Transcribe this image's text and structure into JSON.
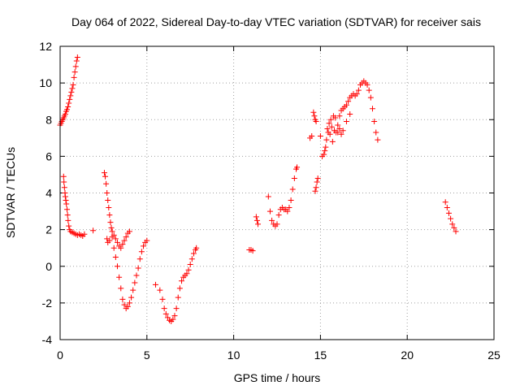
{
  "chart_data": {
    "type": "scatter",
    "title": "Day 064 of 2022, Sidereal Day-to-day VTEC variation (SDTVAR) for receiver sais",
    "xlabel": "GPS time / hours",
    "ylabel": "SDTVAR / TECUs",
    "xlim": [
      0,
      25
    ],
    "ylim": [
      -4,
      12
    ],
    "xticks": [
      0,
      5,
      10,
      15,
      20,
      25
    ],
    "yticks": [
      -4,
      -2,
      0,
      2,
      4,
      6,
      8,
      10,
      12
    ],
    "xtick_labels": [
      "0",
      "5",
      "10",
      "15",
      "20",
      "25"
    ],
    "ytick_labels": [
      "-4",
      "-2",
      "0",
      "2",
      "4",
      "6",
      "8",
      "10",
      "12"
    ],
    "grid": true,
    "marker": "plus",
    "color": "#ff0000",
    "series": [
      {
        "values": [
          [
            0.0,
            7.7
          ],
          [
            0.05,
            7.8
          ],
          [
            0.1,
            7.9
          ],
          [
            0.15,
            8.0
          ],
          [
            0.2,
            8.1
          ],
          [
            0.25,
            8.2
          ],
          [
            0.3,
            8.3
          ],
          [
            0.35,
            8.45
          ],
          [
            0.4,
            8.55
          ],
          [
            0.45,
            8.7
          ],
          [
            0.5,
            8.9
          ],
          [
            0.55,
            9.1
          ],
          [
            0.6,
            9.3
          ],
          [
            0.65,
            9.5
          ],
          [
            0.7,
            9.7
          ],
          [
            0.75,
            9.9
          ],
          [
            0.8,
            10.3
          ],
          [
            0.85,
            10.6
          ],
          [
            0.9,
            10.9
          ],
          [
            0.95,
            11.2
          ],
          [
            1.0,
            11.4
          ],
          [
            0.2,
            4.9
          ],
          [
            0.22,
            4.6
          ],
          [
            0.25,
            4.3
          ],
          [
            0.28,
            4.0
          ],
          [
            0.3,
            3.8
          ],
          [
            0.33,
            3.6
          ],
          [
            0.36,
            3.4
          ],
          [
            0.4,
            3.1
          ],
          [
            0.43,
            2.8
          ],
          [
            0.46,
            2.5
          ],
          [
            0.5,
            2.2
          ],
          [
            0.55,
            2.0
          ],
          [
            0.6,
            1.9
          ],
          [
            0.7,
            1.85
          ],
          [
            0.8,
            1.8
          ],
          [
            0.9,
            1.75
          ],
          [
            1.0,
            1.7
          ],
          [
            1.1,
            1.75
          ],
          [
            1.2,
            1.7
          ],
          [
            1.3,
            1.65
          ],
          [
            1.4,
            1.75
          ],
          [
            1.9,
            1.95
          ],
          [
            2.55,
            5.1
          ],
          [
            2.6,
            4.9
          ],
          [
            2.65,
            4.5
          ],
          [
            2.7,
            4.0
          ],
          [
            2.75,
            3.6
          ],
          [
            2.8,
            3.2
          ],
          [
            2.85,
            2.8
          ],
          [
            2.9,
            2.4
          ],
          [
            2.95,
            2.1
          ],
          [
            3.0,
            1.9
          ],
          [
            2.7,
            1.5
          ],
          [
            2.75,
            1.3
          ],
          [
            2.85,
            1.4
          ],
          [
            3.0,
            1.6
          ],
          [
            3.1,
            1.7
          ],
          [
            3.2,
            1.5
          ],
          [
            3.3,
            1.3
          ],
          [
            3.4,
            1.1
          ],
          [
            3.5,
            1.0
          ],
          [
            3.6,
            1.2
          ],
          [
            3.7,
            1.4
          ],
          [
            3.8,
            1.6
          ],
          [
            3.9,
            1.8
          ],
          [
            4.0,
            1.9
          ],
          [
            3.1,
            1.0
          ],
          [
            3.2,
            0.5
          ],
          [
            3.3,
            0.0
          ],
          [
            3.4,
            -0.6
          ],
          [
            3.5,
            -1.2
          ],
          [
            3.6,
            -1.8
          ],
          [
            3.7,
            -2.1
          ],
          [
            3.8,
            -2.3
          ],
          [
            3.9,
            -2.2
          ],
          [
            4.0,
            -2.0
          ],
          [
            4.1,
            -1.7
          ],
          [
            4.2,
            -1.3
          ],
          [
            4.3,
            -0.9
          ],
          [
            4.4,
            -0.5
          ],
          [
            4.5,
            -0.1
          ],
          [
            4.6,
            0.4
          ],
          [
            4.7,
            0.8
          ],
          [
            4.8,
            1.1
          ],
          [
            4.9,
            1.3
          ],
          [
            5.0,
            1.4
          ],
          [
            5.5,
            -1.0
          ],
          [
            5.75,
            -1.3
          ],
          [
            5.9,
            -1.8
          ],
          [
            6.0,
            -2.3
          ],
          [
            6.1,
            -2.6
          ],
          [
            6.2,
            -2.8
          ],
          [
            6.3,
            -2.95
          ],
          [
            6.4,
            -3.0
          ],
          [
            6.5,
            -2.9
          ],
          [
            6.6,
            -2.7
          ],
          [
            6.7,
            -2.3
          ],
          [
            6.8,
            -1.7
          ],
          [
            6.9,
            -1.2
          ],
          [
            7.0,
            -0.8
          ],
          [
            7.1,
            -0.6
          ],
          [
            7.2,
            -0.5
          ],
          [
            7.3,
            -0.4
          ],
          [
            7.4,
            -0.2
          ],
          [
            7.5,
            0.1
          ],
          [
            7.6,
            0.4
          ],
          [
            7.7,
            0.7
          ],
          [
            7.8,
            0.9
          ],
          [
            7.85,
            1.0
          ],
          [
            10.9,
            0.9
          ],
          [
            11.0,
            0.9
          ],
          [
            11.1,
            0.85
          ],
          [
            11.3,
            2.7
          ],
          [
            11.35,
            2.5
          ],
          [
            11.4,
            2.3
          ],
          [
            12.0,
            3.8
          ],
          [
            12.1,
            3.0
          ],
          [
            12.2,
            2.5
          ],
          [
            12.3,
            2.3
          ],
          [
            12.4,
            2.2
          ],
          [
            12.5,
            2.3
          ],
          [
            12.6,
            2.8
          ],
          [
            12.7,
            3.1
          ],
          [
            12.8,
            3.2
          ],
          [
            12.9,
            3.1
          ],
          [
            13.0,
            3.1
          ],
          [
            13.1,
            3.0
          ],
          [
            13.2,
            3.2
          ],
          [
            13.3,
            3.6
          ],
          [
            13.4,
            4.2
          ],
          [
            13.5,
            4.8
          ],
          [
            13.6,
            5.3
          ],
          [
            13.65,
            5.4
          ],
          [
            14.4,
            7.0
          ],
          [
            14.5,
            7.1
          ],
          [
            14.6,
            8.4
          ],
          [
            14.65,
            8.2
          ],
          [
            14.7,
            8.0
          ],
          [
            14.75,
            7.9
          ],
          [
            14.7,
            4.1
          ],
          [
            14.75,
            4.3
          ],
          [
            14.8,
            4.6
          ],
          [
            14.85,
            4.8
          ],
          [
            15.0,
            7.1
          ],
          [
            15.1,
            6.0
          ],
          [
            15.2,
            6.1
          ],
          [
            15.25,
            6.3
          ],
          [
            15.3,
            6.5
          ],
          [
            15.35,
            6.9
          ],
          [
            15.4,
            7.5
          ],
          [
            15.45,
            7.3
          ],
          [
            15.5,
            7.8
          ],
          [
            15.55,
            7.2
          ],
          [
            15.6,
            8.0
          ],
          [
            15.65,
            7.6
          ],
          [
            15.7,
            6.8
          ],
          [
            15.75,
            8.2
          ],
          [
            15.8,
            7.4
          ],
          [
            15.85,
            8.1
          ],
          [
            15.9,
            7.3
          ],
          [
            16.0,
            7.7
          ],
          [
            16.1,
            8.2
          ],
          [
            16.2,
            8.5
          ],
          [
            16.3,
            8.6
          ],
          [
            16.4,
            8.7
          ],
          [
            16.5,
            8.8
          ],
          [
            16.6,
            9.0
          ],
          [
            16.7,
            9.2
          ],
          [
            16.8,
            9.3
          ],
          [
            16.9,
            9.4
          ],
          [
            17.0,
            9.3
          ],
          [
            17.1,
            9.4
          ],
          [
            17.2,
            9.6
          ],
          [
            17.3,
            9.9
          ],
          [
            17.4,
            10.0
          ],
          [
            17.5,
            10.1
          ],
          [
            17.6,
            10.0
          ],
          [
            17.7,
            9.9
          ],
          [
            17.8,
            9.6
          ],
          [
            17.9,
            9.2
          ],
          [
            18.0,
            8.6
          ],
          [
            18.1,
            7.9
          ],
          [
            18.2,
            7.3
          ],
          [
            18.3,
            6.9
          ],
          [
            16.0,
            7.3
          ],
          [
            16.1,
            7.5
          ],
          [
            16.2,
            7.2
          ],
          [
            16.3,
            7.4
          ],
          [
            16.5,
            7.9
          ],
          [
            16.7,
            8.3
          ],
          [
            22.2,
            3.5
          ],
          [
            22.3,
            3.2
          ],
          [
            22.4,
            2.9
          ],
          [
            22.5,
            2.6
          ],
          [
            22.6,
            2.3
          ],
          [
            22.7,
            2.1
          ],
          [
            22.8,
            1.9
          ]
        ]
      }
    ]
  }
}
